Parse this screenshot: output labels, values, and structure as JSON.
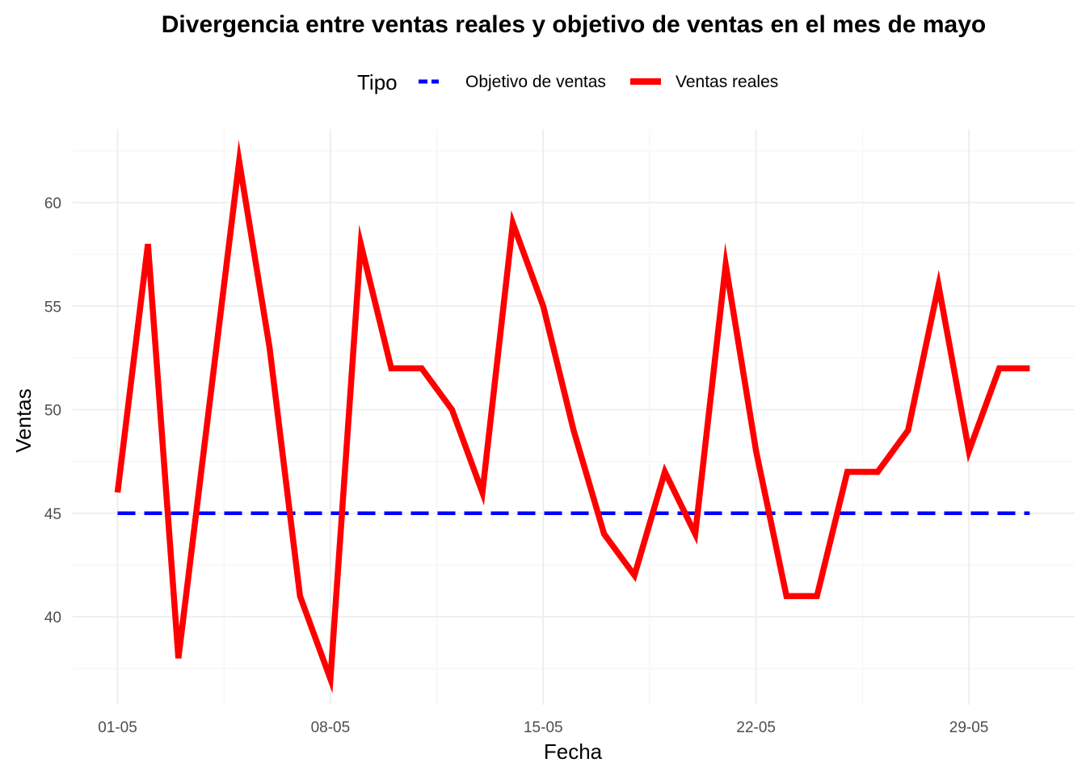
{
  "chart_data": {
    "type": "line",
    "title": "Divergencia entre ventas reales y objetivo de ventas en el mes de mayo",
    "xlabel": "Fecha",
    "ylabel": "Ventas",
    "legend": {
      "title": "Tipo",
      "position": "top",
      "entries": [
        "Objetivo de ventas",
        "Ventas reales"
      ]
    },
    "x_ticks": [
      "01-05",
      "08-05",
      "15-05",
      "22-05",
      "29-05"
    ],
    "x_tick_days": [
      1,
      8,
      15,
      22,
      29
    ],
    "xlim": [
      "2023-05-01",
      "2023-05-31"
    ],
    "y_ticks": [
      40,
      45,
      50,
      55,
      60
    ],
    "ylim": [
      37,
      62
    ],
    "grid": true,
    "x": [
      "2023-05-01",
      "2023-05-02",
      "2023-05-03",
      "2023-05-04",
      "2023-05-05",
      "2023-05-06",
      "2023-05-07",
      "2023-05-08",
      "2023-05-09",
      "2023-05-10",
      "2023-05-11",
      "2023-05-12",
      "2023-05-13",
      "2023-05-14",
      "2023-05-15",
      "2023-05-16",
      "2023-05-17",
      "2023-05-18",
      "2023-05-19",
      "2023-05-20",
      "2023-05-21",
      "2023-05-22",
      "2023-05-23",
      "2023-05-24",
      "2023-05-25",
      "2023-05-26",
      "2023-05-27",
      "2023-05-28",
      "2023-05-29",
      "2023-05-30",
      "2023-05-31"
    ],
    "series": [
      {
        "name": "Objetivo de ventas",
        "color": "#0000ff",
        "style": "dashed",
        "values": [
          45,
          45,
          45,
          45,
          45,
          45,
          45,
          45,
          45,
          45,
          45,
          45,
          45,
          45,
          45,
          45,
          45,
          45,
          45,
          45,
          45,
          45,
          45,
          45,
          45,
          45,
          45,
          45,
          45,
          45,
          45
        ]
      },
      {
        "name": "Ventas reales",
        "color": "#ff0000",
        "style": "solid",
        "values": [
          46,
          58,
          38,
          50,
          62,
          53,
          41,
          37,
          58,
          52,
          52,
          50,
          46,
          59,
          55,
          49,
          44,
          42,
          47,
          44,
          57,
          48,
          41,
          41,
          47,
          47,
          49,
          56,
          48,
          52,
          52
        ]
      }
    ]
  }
}
